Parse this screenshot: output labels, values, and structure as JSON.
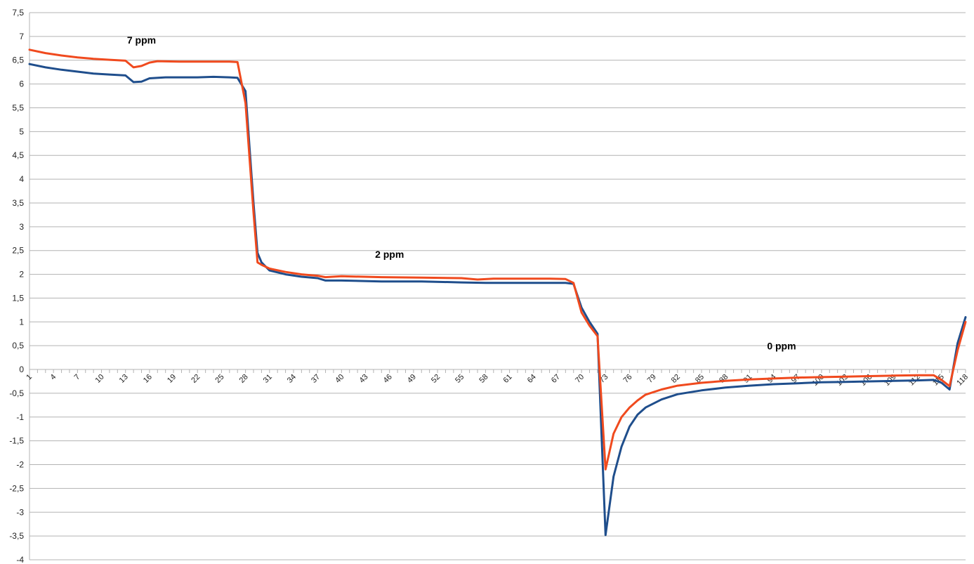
{
  "chart_data": {
    "type": "line",
    "title": "",
    "xlabel": "",
    "ylabel": "",
    "ylim": [
      -4,
      7.5
    ],
    "xlim": [
      1,
      118
    ],
    "grid": true,
    "legend": "none",
    "y_ticks": [
      "7,5",
      "7",
      "6,5",
      "6",
      "5,5",
      "5",
      "4,5",
      "4",
      "3,5",
      "3",
      "2,5",
      "2",
      "1,5",
      "1",
      "0,5",
      "0",
      "-0,5",
      "-1",
      "-1,5",
      "-2",
      "-2,5",
      "-3",
      "-3,5",
      "-4"
    ],
    "x_ticks": [
      "1",
      "4",
      "7",
      "10",
      "13",
      "16",
      "19",
      "22",
      "25",
      "28",
      "31",
      "34",
      "37",
      "40",
      "43",
      "46",
      "49",
      "52",
      "55",
      "58",
      "61",
      "64",
      "67",
      "70",
      "73",
      "76",
      "79",
      "82",
      "85",
      "88",
      "91",
      "94",
      "97",
      "100",
      "103",
      "106",
      "109",
      "112",
      "115",
      "118"
    ],
    "annotations": [
      {
        "text": "7 ppm",
        "x": 15,
        "y": 6.85
      },
      {
        "text": "2 ppm",
        "x": 46,
        "y": 2.35
      },
      {
        "text": "0 ppm",
        "x": 95,
        "y": 0.42
      }
    ],
    "series": [
      {
        "color": "#1f4e8c",
        "points": [
          [
            1,
            6.42
          ],
          [
            3,
            6.35
          ],
          [
            5,
            6.3
          ],
          [
            7,
            6.26
          ],
          [
            9,
            6.22
          ],
          [
            11,
            6.2
          ],
          [
            13,
            6.18
          ],
          [
            14,
            6.04
          ],
          [
            15,
            6.05
          ],
          [
            16,
            6.12
          ],
          [
            18,
            6.14
          ],
          [
            20,
            6.14
          ],
          [
            22,
            6.14
          ],
          [
            24,
            6.15
          ],
          [
            26,
            6.14
          ],
          [
            27,
            6.13
          ],
          [
            28,
            5.85
          ],
          [
            29,
            3.5
          ],
          [
            29.5,
            2.45
          ],
          [
            30,
            2.25
          ],
          [
            31,
            2.08
          ],
          [
            33,
            2.0
          ],
          [
            35,
            1.95
          ],
          [
            37,
            1.92
          ],
          [
            38,
            1.87
          ],
          [
            40,
            1.87
          ],
          [
            45,
            1.85
          ],
          [
            50,
            1.85
          ],
          [
            55,
            1.83
          ],
          [
            58,
            1.82
          ],
          [
            62,
            1.82
          ],
          [
            66,
            1.82
          ],
          [
            68,
            1.82
          ],
          [
            69,
            1.8
          ],
          [
            70,
            1.3
          ],
          [
            71,
            1.0
          ],
          [
            72,
            0.75
          ],
          [
            73,
            -3.48
          ],
          [
            74,
            -2.25
          ],
          [
            75,
            -1.62
          ],
          [
            76,
            -1.2
          ],
          [
            77,
            -0.95
          ],
          [
            78,
            -0.8
          ],
          [
            80,
            -0.63
          ],
          [
            82,
            -0.52
          ],
          [
            85,
            -0.44
          ],
          [
            88,
            -0.38
          ],
          [
            91,
            -0.34
          ],
          [
            94,
            -0.31
          ],
          [
            97,
            -0.29
          ],
          [
            100,
            -0.27
          ],
          [
            103,
            -0.26
          ],
          [
            106,
            -0.25
          ],
          [
            109,
            -0.24
          ],
          [
            112,
            -0.23
          ],
          [
            114,
            -0.22
          ],
          [
            115,
            -0.28
          ],
          [
            116,
            -0.42
          ],
          [
            117,
            0.55
          ],
          [
            118,
            1.1
          ]
        ]
      },
      {
        "color": "#f04a1e",
        "points": [
          [
            1,
            6.72
          ],
          [
            3,
            6.65
          ],
          [
            5,
            6.6
          ],
          [
            7,
            6.56
          ],
          [
            9,
            6.53
          ],
          [
            11,
            6.51
          ],
          [
            13,
            6.49
          ],
          [
            14,
            6.35
          ],
          [
            15,
            6.38
          ],
          [
            16,
            6.45
          ],
          [
            17,
            6.48
          ],
          [
            20,
            6.47
          ],
          [
            22,
            6.47
          ],
          [
            24,
            6.47
          ],
          [
            26,
            6.47
          ],
          [
            27,
            6.46
          ],
          [
            28,
            5.6
          ],
          [
            29,
            3.3
          ],
          [
            29.5,
            2.25
          ],
          [
            30,
            2.2
          ],
          [
            31,
            2.12
          ],
          [
            33,
            2.05
          ],
          [
            35,
            2.0
          ],
          [
            37,
            1.97
          ],
          [
            38,
            1.94
          ],
          [
            40,
            1.96
          ],
          [
            45,
            1.94
          ],
          [
            50,
            1.93
          ],
          [
            55,
            1.92
          ],
          [
            57,
            1.89
          ],
          [
            59,
            1.91
          ],
          [
            62,
            1.91
          ],
          [
            66,
            1.91
          ],
          [
            68,
            1.9
          ],
          [
            69,
            1.82
          ],
          [
            70,
            1.2
          ],
          [
            71,
            0.92
          ],
          [
            72,
            0.7
          ],
          [
            73,
            -2.1
          ],
          [
            74,
            -1.35
          ],
          [
            75,
            -1.0
          ],
          [
            76,
            -0.8
          ],
          [
            77,
            -0.65
          ],
          [
            78,
            -0.53
          ],
          [
            80,
            -0.42
          ],
          [
            82,
            -0.34
          ],
          [
            85,
            -0.28
          ],
          [
            88,
            -0.24
          ],
          [
            91,
            -0.21
          ],
          [
            94,
            -0.19
          ],
          [
            97,
            -0.17
          ],
          [
            100,
            -0.16
          ],
          [
            103,
            -0.15
          ],
          [
            106,
            -0.14
          ],
          [
            109,
            -0.13
          ],
          [
            112,
            -0.12
          ],
          [
            114,
            -0.12
          ],
          [
            115,
            -0.22
          ],
          [
            116,
            -0.35
          ],
          [
            117,
            0.4
          ],
          [
            118,
            1.0
          ]
        ]
      }
    ]
  }
}
